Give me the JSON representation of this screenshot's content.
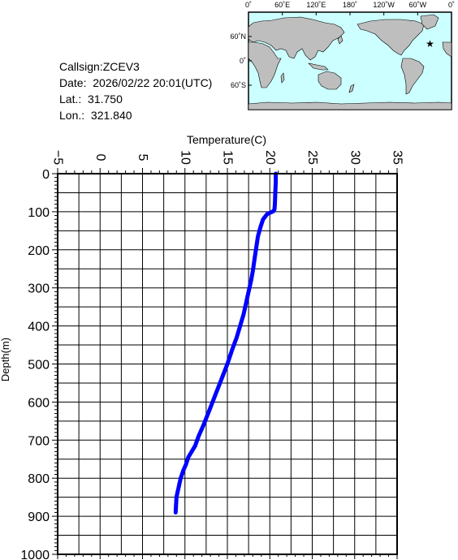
{
  "station": {
    "callsign_label": "Callsign:",
    "callsign": "ZCEV3",
    "date_label": "Date:",
    "date": "2026/02/22 20:01(UTC)",
    "lat_label": "Lat.:",
    "lat": "31.750",
    "lon_label": "Lon.:",
    "lon": "321.840"
  },
  "map": {
    "lon_labels": [
      "0˚",
      "60˚E",
      "120˚E",
      "180˚",
      "120˚W",
      "60˚W",
      "0˚"
    ],
    "lat_labels": [
      "60˚N",
      "0˚",
      "60˚S"
    ],
    "ocean_color": "#ccffff",
    "land_color": "#bebebe",
    "marker_color": "#ff0000",
    "marker_icon": "star-icon",
    "marker": {
      "lon": 321.84,
      "lat": 31.75
    }
  },
  "chart_data": {
    "type": "line",
    "xlabel": "Temperature(C)",
    "ylabel": "Depth(m)",
    "xlim": [
      -5,
      35
    ],
    "ylim": [
      0,
      1000
    ],
    "y_inverted": true,
    "x_ticks": [
      "-5",
      "0",
      "5",
      "10",
      "15",
      "20",
      "25",
      "30",
      "35"
    ],
    "y_ticks": [
      "0",
      "100",
      "200",
      "300",
      "400",
      "500",
      "600",
      "700",
      "800",
      "900",
      "1000"
    ],
    "grid": true,
    "line_color": "#0000ff",
    "series": [
      {
        "x": [
          20.7,
          20.7,
          20.65,
          20.6,
          20.55,
          20.4,
          19.7,
          19.2,
          18.9,
          18.6,
          18.4,
          18.2,
          18.0,
          17.8,
          17.5,
          17.2,
          16.9,
          16.5,
          16.1,
          15.6,
          15.0,
          14.3,
          13.6,
          12.9,
          12.2,
          11.6,
          11.2,
          10.8,
          10.4,
          10.1,
          9.8,
          9.5,
          9.3,
          9.0,
          8.9
        ],
        "y": [
          0,
          20,
          50,
          80,
          94,
          99,
          106,
          120,
          140,
          165,
          195,
          225,
          255,
          280,
          310,
          340,
          370,
          400,
          430,
          460,
          500,
          540,
          580,
          620,
          660,
          690,
          715,
          730,
          745,
          765,
          780,
          800,
          820,
          850,
          890
        ]
      }
    ]
  }
}
